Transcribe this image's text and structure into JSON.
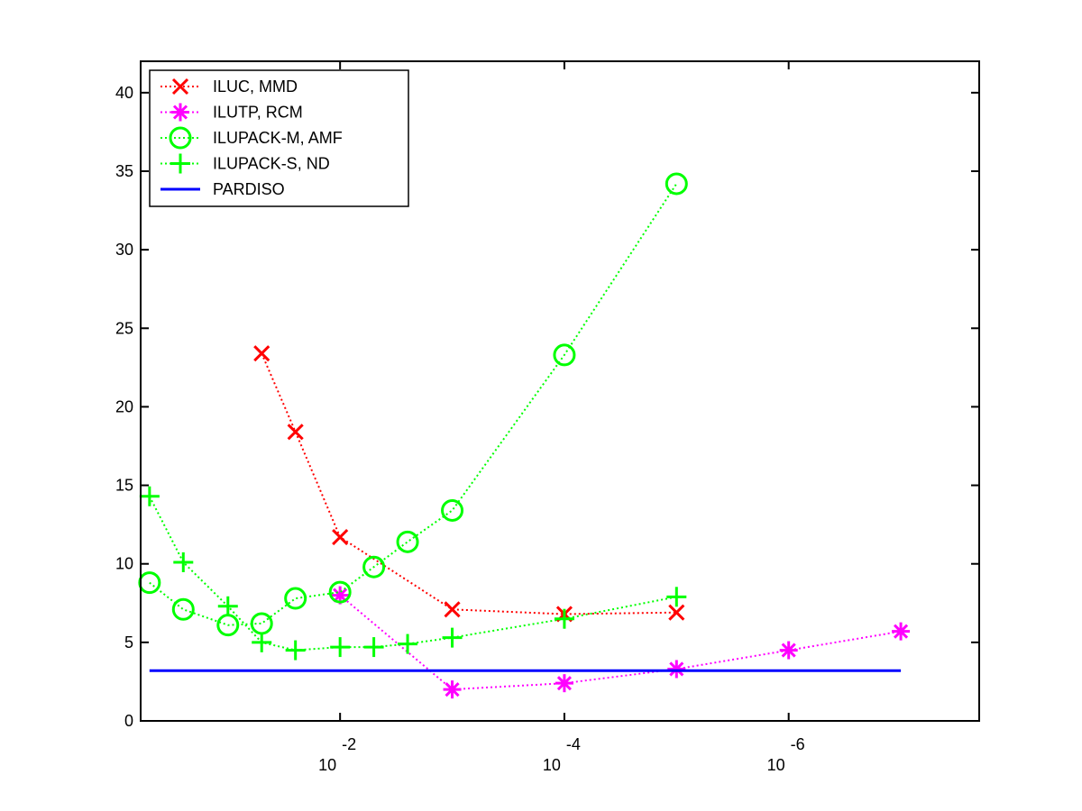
{
  "chart_data": {
    "type": "line",
    "title": "",
    "xlabel": "",
    "ylabel": "",
    "x_scale": "log-reversed",
    "xlim": [
      0.6,
      2e-08
    ],
    "ylim": [
      0,
      42
    ],
    "y_ticks": [
      0,
      5,
      10,
      15,
      20,
      25,
      30,
      35,
      40
    ],
    "x_ticks": [
      {
        "value": 0.01,
        "base": "10",
        "exponent": "-2"
      },
      {
        "value": 0.0001,
        "base": "10",
        "exponent": "-4"
      },
      {
        "value": 1e-06,
        "base": "10",
        "exponent": "-6"
      }
    ],
    "grid": false,
    "legend_position": "top-left",
    "series": [
      {
        "name": "ILUC, MMD",
        "color": "#ff0000",
        "marker": "x",
        "linestyle": "dotted",
        "points": [
          [
            0.05,
            23.4
          ],
          [
            0.025,
            18.4
          ],
          [
            0.01,
            11.7
          ],
          [
            0.001,
            7.1
          ],
          [
            0.0001,
            6.8
          ],
          [
            1e-05,
            6.9
          ]
        ]
      },
      {
        "name": "ILUTP, RCM",
        "color": "#ff00ff",
        "marker": "asterisk",
        "linestyle": "dotted",
        "points": [
          [
            0.01,
            8.0
          ],
          [
            0.001,
            2.0
          ],
          [
            0.0001,
            2.4
          ],
          [
            1e-05,
            3.3
          ],
          [
            1e-06,
            4.5
          ],
          [
            1e-07,
            5.7
          ]
        ]
      },
      {
        "name": "ILUPACK-M, AMF",
        "color": "#00ff00",
        "marker": "circle",
        "linestyle": "dotted",
        "points": [
          [
            0.5,
            8.8
          ],
          [
            0.25,
            7.1
          ],
          [
            0.1,
            6.1
          ],
          [
            0.05,
            6.2
          ],
          [
            0.025,
            7.8
          ],
          [
            0.01,
            8.2
          ],
          [
            0.005,
            9.8
          ],
          [
            0.0025,
            11.4
          ],
          [
            0.001,
            13.4
          ],
          [
            0.0001,
            23.3
          ],
          [
            1e-05,
            34.2
          ]
        ]
      },
      {
        "name": "ILUPACK-S, ND",
        "color": "#00ff00",
        "marker": "plus",
        "linestyle": "dotted",
        "points": [
          [
            0.5,
            14.3
          ],
          [
            0.25,
            10.1
          ],
          [
            0.1,
            7.3
          ],
          [
            0.05,
            5.0
          ],
          [
            0.025,
            4.5
          ],
          [
            0.01,
            4.7
          ],
          [
            0.005,
            4.7
          ],
          [
            0.0025,
            4.9
          ],
          [
            0.001,
            5.3
          ],
          [
            0.0001,
            6.5
          ],
          [
            1e-05,
            7.9
          ]
        ]
      },
      {
        "name": "PARDISO",
        "color": "#0000ff",
        "marker": "none",
        "linestyle": "solid",
        "points": [
          [
            0.5,
            3.2
          ],
          [
            1e-07,
            3.2
          ]
        ]
      }
    ]
  }
}
